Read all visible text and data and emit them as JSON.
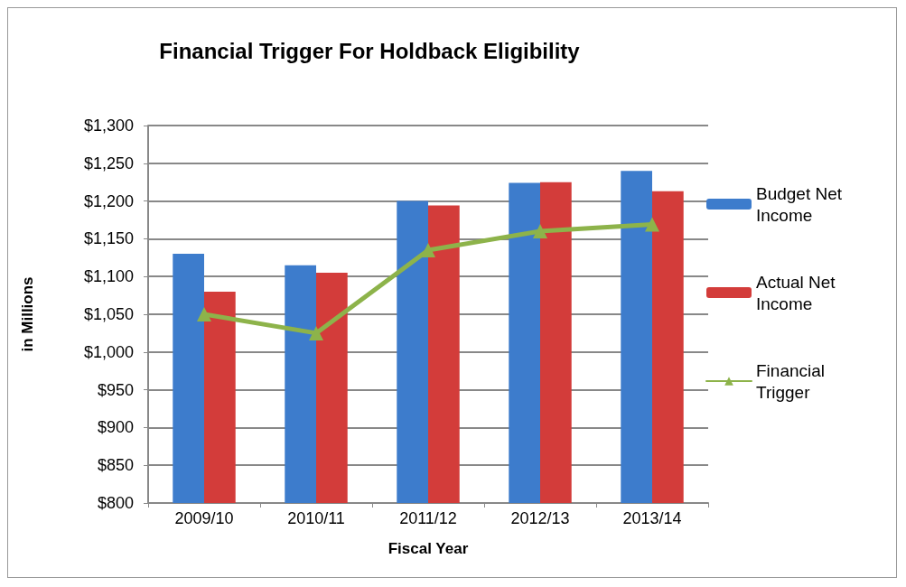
{
  "chart_data": {
    "type": "bar",
    "title": "Financial Trigger For Holdback Eligibility",
    "xlabel": "Fiscal Year",
    "ylabel": "in Millions",
    "categories": [
      "2009/10",
      "2010/11",
      "2011/12",
      "2012/13",
      "2013/14"
    ],
    "series": [
      {
        "name": "Budget Net Income",
        "color": "#3d7ccc",
        "values": [
          1130,
          1115,
          1200,
          1224,
          1240
        ]
      },
      {
        "name": "Actual Net Income",
        "color": "#d33c3a",
        "values": [
          1080,
          1105,
          1194,
          1225,
          1213
        ]
      },
      {
        "name": "Financial Trigger",
        "type": "line",
        "color": "#8db34a",
        "marker": "triangle",
        "values": [
          1050,
          1025,
          1135,
          1160,
          1169
        ]
      }
    ],
    "ylim": [
      800,
      1300
    ],
    "yticks": [
      {
        "value": 800,
        "label": "$800"
      },
      {
        "value": 850,
        "label": "$850"
      },
      {
        "value": 900,
        "label": "$900"
      },
      {
        "value": 950,
        "label": "$950"
      },
      {
        "value": 1000,
        "label": "$1,000"
      },
      {
        "value": 1050,
        "label": "$1,050"
      },
      {
        "value": 1100,
        "label": "$1,100"
      },
      {
        "value": 1150,
        "label": "$1,150"
      },
      {
        "value": 1200,
        "label": "$1,200"
      },
      {
        "value": 1250,
        "label": "$1,250"
      },
      {
        "value": 1300,
        "label": "$1,300"
      }
    ],
    "grid": "y",
    "legend": "right"
  }
}
